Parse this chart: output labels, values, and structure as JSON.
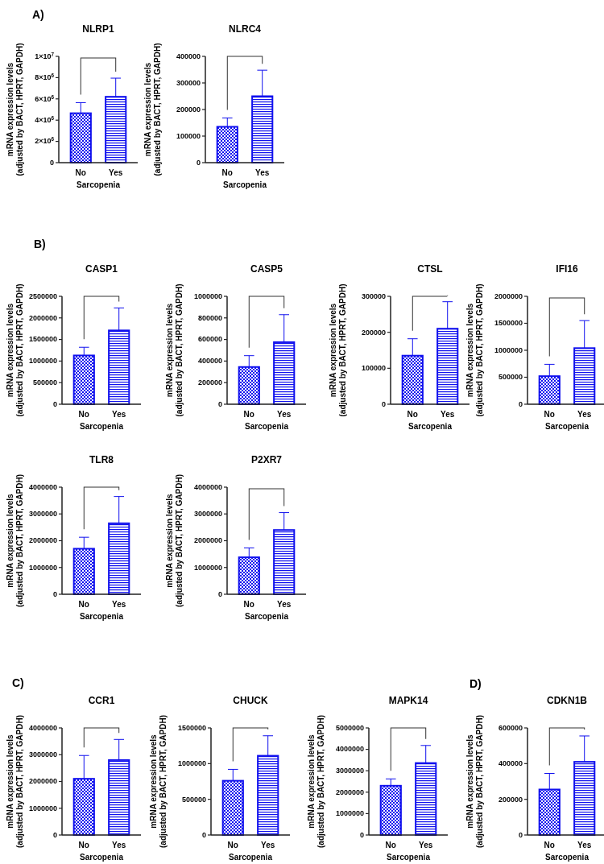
{
  "chart_data": [
    {
      "type": "bar",
      "title": "NLRP1",
      "annotations": [
        "A)"
      ],
      "xlabel": "Sarcopenia",
      "ylabel": "mRNA expression levels\n(adjusted by BACT, HPRT, GAPDH)",
      "categories": [
        "No",
        "Yes"
      ],
      "values": [
        4650000,
        6200000
      ],
      "errors": [
        [
          4650000,
          5650000
        ],
        [
          6200000,
          7950000
        ]
      ],
      "colors": [
        "#1010ee",
        "#1010ee"
      ],
      "ylim": [
        0,
        10000000
      ],
      "yticks": [
        0,
        {
          "value": 2000000,
          "label": "2×10$^{6}$"
        },
        {
          "value": 4000000,
          "label": "4×10$^{6}$"
        },
        {
          "value": 6000000,
          "label": "6×10$^{6}$"
        },
        {
          "value": 8000000,
          "label": "8×10$^{6}$"
        },
        {
          "value": 10000000,
          "label": "1×10$^{7}$"
        }
      ],
      "grid": false
    },
    {
      "type": "bar",
      "title": "NLRC4",
      "xlabel": "Sarcopenia",
      "ylabel": "mRNA expression levels\n(adjusted by BACT, HPRT, GAPDH)",
      "categories": [
        "No",
        "Yes"
      ],
      "values": [
        135000,
        250000
      ],
      "errors": [
        [
          135000,
          168000
        ],
        [
          250000,
          348000
        ]
      ],
      "colors": [
        "#1010ee",
        "#1010ee"
      ],
      "ylim": [
        0,
        400000
      ],
      "yticks": [
        0,
        100000,
        200000,
        300000,
        400000
      ],
      "grid": false
    },
    {
      "type": "bar",
      "title": "CASP1",
      "annotations": [
        "B)"
      ],
      "xlabel": "Sarcopenia",
      "ylabel": "mRNA expression levels\n(adjusted by BACT, HPRT, GAPDH)",
      "categories": [
        "No",
        "Yes"
      ],
      "values": [
        1130000,
        1710000
      ],
      "errors": [
        [
          1130000,
          1320000
        ],
        [
          1710000,
          2230000
        ]
      ],
      "colors": [
        "#1010ee",
        "#1010ee"
      ],
      "ylim": [
        0,
        2500000
      ],
      "yticks": [
        0,
        500000,
        1000000,
        1500000,
        2000000,
        2500000
      ],
      "grid": false
    },
    {
      "type": "bar",
      "title": "CASP5",
      "xlabel": "Sarcopenia",
      "ylabel": "mRNA expression levels\n(adjusted by BACT, HPRT, GAPDH)",
      "categories": [
        "No",
        "Yes"
      ],
      "values": [
        345000,
        575000
      ],
      "errors": [
        [
          345000,
          450000
        ],
        [
          575000,
          830000
        ]
      ],
      "colors": [
        "#1010ee",
        "#1010ee"
      ],
      "ylim": [
        0,
        1000000
      ],
      "yticks": [
        0,
        200000,
        400000,
        600000,
        800000,
        1000000
      ],
      "grid": false
    },
    {
      "type": "bar",
      "title": "CTSL",
      "xlabel": "Sarcopenia",
      "ylabel": "mRNA expression levels\n(adjusted by BACT, HPRT, GAPDH)",
      "categories": [
        "No",
        "Yes"
      ],
      "values": [
        135000,
        210000
      ],
      "errors": [
        [
          135000,
          182000
        ],
        [
          210000,
          285000
        ]
      ],
      "colors": [
        "#1010ee",
        "#1010ee"
      ],
      "ylim": [
        0,
        300000
      ],
      "yticks": [
        0,
        100000,
        200000,
        300000
      ],
      "grid": false
    },
    {
      "type": "bar",
      "title": "IFI16",
      "xlabel": "Sarcopenia",
      "ylabel": "mRNA expression levels\n(adjusted by BACT, HPRT, GAPDH)",
      "categories": [
        "No",
        "Yes"
      ],
      "values": [
        520000,
        1040000
      ],
      "errors": [
        [
          520000,
          740000
        ],
        [
          1040000,
          1550000
        ]
      ],
      "colors": [
        "#1010ee",
        "#1010ee"
      ],
      "ylim": [
        0,
        2000000
      ],
      "yticks": [
        0,
        500000,
        1000000,
        1500000,
        2000000
      ],
      "grid": false
    },
    {
      "type": "bar",
      "title": "TLR8",
      "xlabel": "Sarcopenia",
      "ylabel": "mRNA expression levels\n(adjusted by BACT, HPRT, GAPDH)",
      "categories": [
        "No",
        "Yes"
      ],
      "values": [
        1700000,
        2650000
      ],
      "errors": [
        [
          1700000,
          2130000
        ],
        [
          2650000,
          3650000
        ]
      ],
      "colors": [
        "#1010ee",
        "#1010ee"
      ],
      "ylim": [
        0,
        4000000
      ],
      "yticks": [
        0,
        1000000,
        2000000,
        3000000,
        4000000
      ],
      "grid": false
    },
    {
      "type": "bar",
      "title": "P2XR7",
      "xlabel": "Sarcopenia",
      "ylabel": "mRNA expression levels\n(adjusted by BACT, HPRT, GAPDH)",
      "categories": [
        "No",
        "Yes"
      ],
      "values": [
        1380000,
        2400000
      ],
      "errors": [
        [
          1380000,
          1730000
        ],
        [
          2400000,
          3050000
        ]
      ],
      "colors": [
        "#1010ee",
        "#1010ee"
      ],
      "ylim": [
        0,
        4000000
      ],
      "yticks": [
        0,
        1000000,
        2000000,
        3000000,
        4000000
      ],
      "grid": false
    },
    {
      "type": "bar",
      "title": "CCR1",
      "annotations": [
        "C)"
      ],
      "xlabel": "Sarcopenia",
      "ylabel": "mRNA expression levels\n(adjusted by BACT, HPRT, GAPDH)",
      "categories": [
        "No",
        "Yes"
      ],
      "values": [
        2100000,
        2800000
      ],
      "errors": [
        [
          2100000,
          2970000
        ],
        [
          2800000,
          3570000
        ]
      ],
      "colors": [
        "#1010ee",
        "#1010ee"
      ],
      "ylim": [
        0,
        4000000
      ],
      "yticks": [
        0,
        1000000,
        2000000,
        3000000,
        4000000
      ],
      "grid": false
    },
    {
      "type": "bar",
      "title": "CHUCK",
      "xlabel": "Sarcopenia",
      "ylabel": "mRNA expression levels\n(adjusted by BACT, HPRT, GAPDH)",
      "categories": [
        "No",
        "Yes"
      ],
      "values": [
        760000,
        1110000
      ],
      "errors": [
        [
          760000,
          920000
        ],
        [
          1110000,
          1390000
        ]
      ],
      "colors": [
        "#1010ee",
        "#1010ee"
      ],
      "ylim": [
        0,
        1500000
      ],
      "yticks": [
        0,
        500000,
        1000000,
        1500000
      ],
      "grid": false
    },
    {
      "type": "bar",
      "title": "MAPK14",
      "xlabel": "Sarcopenia",
      "ylabel": "mRNA expression levels\n(adjusted by BACT, HPRT, GAPDH)",
      "categories": [
        "No",
        "Yes"
      ],
      "values": [
        2300000,
        3360000
      ],
      "errors": [
        [
          2300000,
          2620000
        ],
        [
          3360000,
          4180000
        ]
      ],
      "colors": [
        "#1010ee",
        "#1010ee"
      ],
      "ylim": [
        0,
        5000000
      ],
      "yticks": [
        0,
        1000000,
        2000000,
        3000000,
        4000000,
        5000000
      ],
      "grid": false
    },
    {
      "type": "bar",
      "title": "CDKN1B",
      "annotations": [
        "D)"
      ],
      "xlabel": "Sarcopenia",
      "ylabel": "mRNA expression levels\n(adjusted by BACT, HPRT, GAPDH)",
      "categories": [
        "No",
        "Yes"
      ],
      "values": [
        255000,
        410000
      ],
      "errors": [
        [
          255000,
          345000
        ],
        [
          410000,
          555000
        ]
      ],
      "colors": [
        "#1010ee",
        "#1010ee"
      ],
      "ylim": [
        0,
        600000
      ],
      "yticks": [
        0,
        200000,
        400000,
        600000
      ],
      "grid": false
    }
  ]
}
